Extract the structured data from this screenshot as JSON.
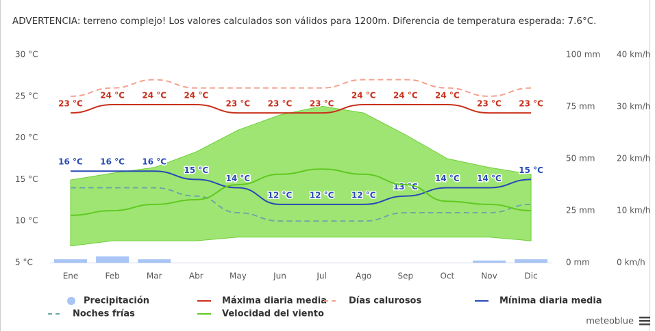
{
  "chart_data": {
    "type": "line",
    "note": "ADVERTENCIA: terreno complejo! Los valores calculados son válidos para 1200m. Diferencia de temperatura esperada: 7.6°C.",
    "categories": [
      "Ene",
      "Feb",
      "Mar",
      "Abr",
      "May",
      "Jun",
      "Jul",
      "Ago",
      "Sep",
      "Oct",
      "Nov",
      "Dic"
    ],
    "ylim": [
      5,
      30
    ],
    "yticks": [
      {
        "value": 5,
        "label": "5 °C"
      },
      {
        "value": 10,
        "label": "10 °C"
      },
      {
        "value": 15,
        "label": "15 °C"
      },
      {
        "value": 20,
        "label": "20 °C"
      },
      {
        "value": 25,
        "label": "25 °C"
      },
      {
        "value": 30,
        "label": "30 °C"
      }
    ],
    "y2lim": [
      0,
      100
    ],
    "y2ticks": [
      {
        "value": 0,
        "label": "0 mm"
      },
      {
        "value": 25,
        "label": "25 mm"
      },
      {
        "value": 50,
        "label": "50 mm"
      },
      {
        "value": 75,
        "label": "75 mm"
      },
      {
        "value": 100,
        "label": "100 mm"
      }
    ],
    "y3lim": [
      0,
      40
    ],
    "y3ticks": [
      {
        "value": 0,
        "label": "0 km/h"
      },
      {
        "value": 10,
        "label": "10 km/h"
      },
      {
        "value": 20,
        "label": "20 km/h"
      },
      {
        "value": 30,
        "label": "30 km/h"
      },
      {
        "value": 40,
        "label": "40 km/h"
      }
    ],
    "wind_range": {
      "axis": "y3",
      "color": "#8ee05a",
      "low": [
        3.2,
        4.2,
        4.2,
        4.2,
        4.9,
        4.9,
        4.9,
        4.9,
        4.9,
        4.9,
        4.9,
        4.2
      ],
      "high": [
        15.9,
        17.2,
        18.3,
        21.3,
        25.5,
        28.4,
        30.1,
        28.8,
        24.6,
        20,
        18.3,
        17
      ]
    },
    "series": [
      {
        "name": "Precipitación",
        "type": "bar",
        "axis": "y2",
        "color": "#a9c5f5",
        "values": [
          1.6,
          3,
          1.6,
          0,
          0,
          0,
          0,
          0,
          0,
          0,
          1,
          1.6
        ]
      },
      {
        "name": "Máxima diaria media",
        "color": "#c9301c",
        "values": [
          23,
          24,
          24,
          24,
          23,
          23,
          23,
          24,
          24,
          24,
          23,
          23
        ],
        "value_labels": [
          "23 °C",
          "24 °C",
          "24 °C",
          "24 °C",
          "23 °C",
          "23 °C",
          "23 °C",
          "24 °C",
          "24 °C",
          "24 °C",
          "23 °C",
          "23 °C"
        ]
      },
      {
        "name": "Días calurosos",
        "color": "#f4a08e",
        "dashed": true,
        "values": [
          25,
          26,
          27,
          26,
          26,
          26,
          26,
          27,
          27,
          26,
          25,
          26
        ]
      },
      {
        "name": "Mínima diaria media",
        "color": "#2649b5",
        "values": [
          16,
          16,
          16,
          15,
          14,
          12,
          12,
          12,
          13,
          14,
          14,
          15
        ],
        "value_labels": [
          "16 °C",
          "16 °C",
          "16 °C",
          "15 °C",
          "14 °C",
          "12 °C",
          "12 °C",
          "12 °C",
          "13 °C",
          "14 °C",
          "14 °C",
          "15 °C"
        ]
      },
      {
        "name": "Noches frías",
        "color": "#6aa9a3",
        "dashed": true,
        "values": [
          14,
          14,
          14,
          13,
          11,
          10,
          10,
          10,
          11,
          11,
          11,
          12
        ]
      },
      {
        "name": "Velocidad del viento",
        "axis": "y3",
        "color": "#5fc921",
        "values": [
          9.1,
          10,
          11.2,
          12.1,
          15,
          17,
          18,
          17,
          15,
          11.8,
          11.2,
          10
        ]
      }
    ],
    "brand": "meteoblue"
  }
}
